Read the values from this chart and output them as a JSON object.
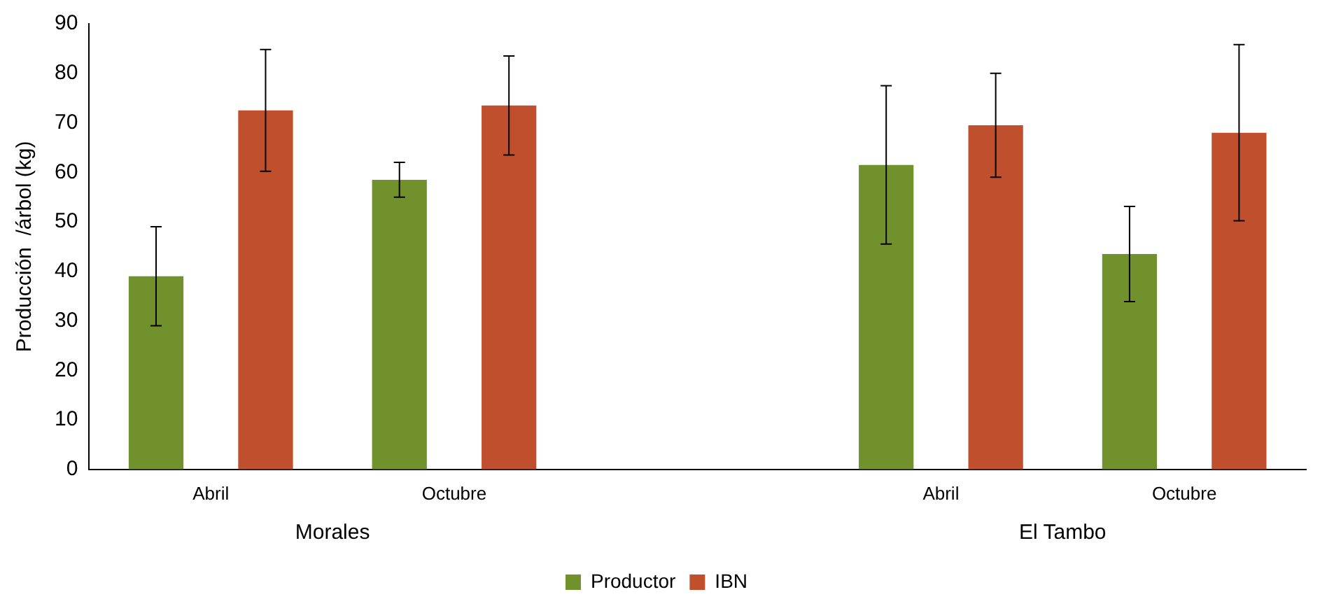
{
  "chart_data": {
    "type": "bar",
    "ylabel": "Producción  /árbol (kg)",
    "categories": [
      "Abril",
      "Octubre",
      null,
      "Abril",
      "Octubre"
    ],
    "series": [
      {
        "name": "Productor",
        "color": "#70912b",
        "values": [
          39,
          58.5,
          null,
          61.5,
          43.5
        ],
        "errors": [
          10,
          3.5,
          null,
          16,
          9.6
        ]
      },
      {
        "name": "IBN",
        "color": "#c0502d",
        "values": [
          72.5,
          73.5,
          null,
          69.5,
          68
        ],
        "errors": [
          12.3,
          10,
          null,
          10.5,
          17.8
        ]
      }
    ],
    "annotations": [
      "Morales",
      "El Tambo"
    ],
    "ylim": [
      0,
      90
    ],
    "yticks": [
      0,
      10,
      20,
      30,
      40,
      50,
      60,
      70,
      80,
      90
    ],
    "grid": false,
    "legend": "bottom"
  }
}
